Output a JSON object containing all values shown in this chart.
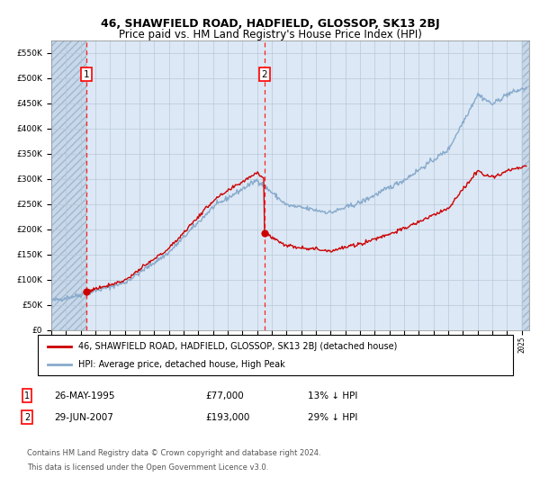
{
  "title": "46, SHAWFIELD ROAD, HADFIELD, GLOSSOP, SK13 2BJ",
  "subtitle": "Price paid vs. HM Land Registry's House Price Index (HPI)",
  "ylim": [
    0,
    575000
  ],
  "yticks": [
    0,
    50000,
    100000,
    150000,
    200000,
    250000,
    300000,
    350000,
    400000,
    450000,
    500000,
    550000
  ],
  "background_color": "#ffffff",
  "plot_bg_color": "#dce8f5",
  "hatch_bg_color": "#c8d8ea",
  "grid_color": "#b8c8d8",
  "sale1_date": 1995.4,
  "sale1_price": 77000,
  "sale2_date": 2007.49,
  "sale2_price": 193000,
  "legend_entry1": "46, SHAWFIELD ROAD, HADFIELD, GLOSSOP, SK13 2BJ (detached house)",
  "legend_entry2": "HPI: Average price, detached house, High Peak",
  "footer3": "Contains HM Land Registry data © Crown copyright and database right 2024.",
  "footer4": "This data is licensed under the Open Government Licence v3.0.",
  "line_color_property": "#cc0000",
  "line_color_hpi": "#88aacc",
  "title_fontsize": 9,
  "subtitle_fontsize": 8.5
}
